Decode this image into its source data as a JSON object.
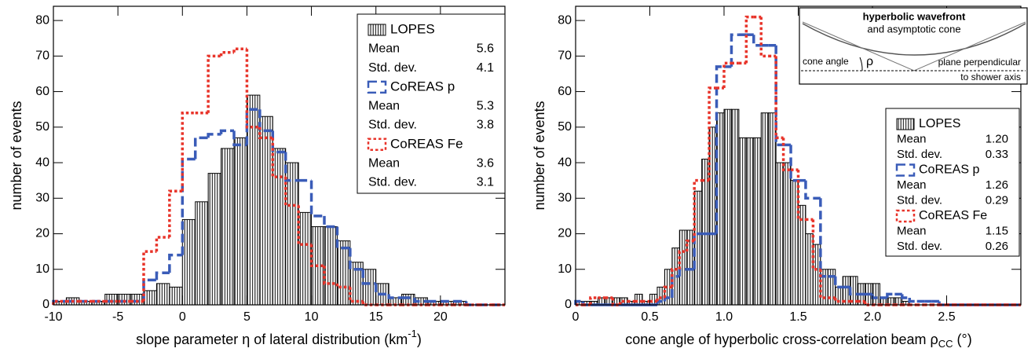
{
  "chart_data": [
    {
      "type": "histogram",
      "x_label": [
        "slope parameter η of lateral distribution (km",
        "-1",
        ")"
      ],
      "x_label_script": "super",
      "y_label": "number of events",
      "bins": [
        -10,
        -9,
        -8,
        -7,
        -6,
        -5,
        -4,
        -3,
        -2,
        -1,
        0,
        1,
        2,
        3,
        4,
        5,
        6,
        7,
        8,
        9,
        10,
        11,
        12,
        13,
        14,
        15,
        16,
        17,
        18,
        19,
        20,
        21,
        22,
        23,
        24,
        25
      ],
      "xlim": [
        -10,
        25
      ],
      "xticks": [
        -10,
        -5,
        0,
        5,
        10,
        15,
        20
      ],
      "ylim": [
        0,
        84
      ],
      "yticks": [
        0,
        10,
        20,
        30,
        40,
        50,
        60,
        70,
        80
      ],
      "series": [
        {
          "name": "LOPES",
          "color": "#000000",
          "style": "hatch",
          "values": [
            1,
            2,
            1,
            1,
            3,
            3,
            3,
            4,
            6,
            5,
            24,
            29,
            37,
            44,
            47,
            59,
            53,
            44,
            40,
            26,
            22,
            22,
            18,
            12,
            10,
            6,
            2,
            3,
            2,
            1,
            1,
            1,
            0,
            0,
            0
          ],
          "stats": [
            {
              "name": "Mean",
              "value": 5.6
            },
            {
              "name": "Std. dev.",
              "value": 4.1
            }
          ]
        },
        {
          "name": "CoREAS p",
          "color": "#3a5cb8",
          "style": "dashed",
          "values": [
            1,
            1,
            1,
            1,
            1,
            1,
            1,
            7,
            9,
            14,
            41,
            47,
            48,
            49,
            45,
            55,
            49,
            43,
            35,
            35,
            25,
            22,
            16,
            10,
            6,
            3,
            2,
            2,
            1,
            1,
            1,
            1,
            0,
            0,
            0
          ],
          "stats": [
            {
              "name": "Mean",
              "value": 5.3
            },
            {
              "name": "Std. dev.",
              "value": 3.8
            }
          ]
        },
        {
          "name": "CoREAS Fe",
          "color": "#e8342a",
          "style": "dotted",
          "values": [
            1,
            1,
            1,
            1,
            1,
            1,
            1,
            15,
            19,
            32,
            54,
            54,
            70,
            71,
            72,
            50,
            47,
            36,
            28,
            17,
            11,
            6,
            5,
            1,
            0,
            0,
            0,
            0,
            0,
            0,
            0,
            0,
            0,
            0,
            0
          ],
          "stats": [
            {
              "name": "Mean",
              "value": 3.6
            },
            {
              "name": "Std. dev.",
              "value": 3.1
            }
          ]
        }
      ]
    },
    {
      "type": "histogram",
      "x_label": [
        "cone angle of hyperbolic cross-correlation beam ρ",
        "CC",
        " (°)"
      ],
      "x_label_script": "sub",
      "y_label": "number of events",
      "bins": [
        0,
        0.05,
        0.1,
        0.15,
        0.2,
        0.25,
        0.3,
        0.35,
        0.4,
        0.45,
        0.5,
        0.55,
        0.6,
        0.65,
        0.7,
        0.75,
        0.8,
        0.85,
        0.9,
        0.95,
        1,
        1.05,
        1.1,
        1.15,
        1.2,
        1.25,
        1.3,
        1.35,
        1.4,
        1.45,
        1.5,
        1.55,
        1.6,
        1.65,
        1.7,
        1.75,
        1.8,
        1.85,
        1.9,
        1.95,
        2,
        2.05,
        2.1,
        2.15,
        2.2,
        2.25,
        2.3,
        2.35,
        2.4,
        2.45,
        2.5,
        2.55,
        2.6,
        2.65,
        2.7,
        2.75,
        2.8,
        2.85,
        2.9,
        2.95,
        3
      ],
      "xlim": [
        0,
        3
      ],
      "xticks": [
        0,
        0.5,
        {
          "value": 1,
          "label": "1.0"
        },
        1.5,
        {
          "value": 2,
          "label": "2.0"
        },
        2.5
      ],
      "ylim": [
        0,
        84
      ],
      "yticks": [
        0,
        10,
        20,
        30,
        40,
        50,
        60,
        70,
        80
      ],
      "series": [
        {
          "name": "LOPES",
          "color": "#000000",
          "style": "hatch",
          "values": [
            1,
            1,
            1,
            2,
            2,
            2,
            2,
            1,
            3,
            1,
            3,
            5,
            10,
            16,
            21,
            21,
            32,
            41,
            50,
            54,
            55,
            55,
            47,
            47,
            47,
            54,
            54,
            40,
            40,
            35,
            28,
            20,
            17,
            10,
            10,
            5,
            8,
            8,
            6,
            6,
            6,
            2,
            2,
            2,
            1,
            0,
            0,
            0,
            0,
            0,
            0,
            0,
            0,
            0,
            0,
            0,
            0,
            0,
            0,
            0
          ],
          "stats": [
            {
              "name": "Mean",
              "value": 1.2,
              "label": "1.20"
            },
            {
              "name": "Std. dev.",
              "value": 0.33
            }
          ]
        },
        {
          "name": "CoREAS p",
          "color": "#3a5cb8",
          "style": "dashed",
          "values": [
            1,
            0,
            0,
            0,
            0,
            0,
            0,
            0,
            0,
            0,
            0,
            1,
            2,
            8,
            10,
            10,
            20,
            20,
            20,
            67,
            67,
            76,
            76,
            76,
            73,
            73,
            73,
            45,
            45,
            35,
            35,
            30,
            30,
            8,
            8,
            5,
            5,
            3,
            3,
            3,
            2,
            2,
            3,
            3,
            2,
            1,
            1,
            1,
            1,
            0,
            0,
            0,
            0,
            0,
            0,
            0,
            0,
            0,
            0,
            0
          ],
          "stats": [
            {
              "name": "Mean",
              "value": 1.26
            },
            {
              "name": "Std. dev.",
              "value": 0.29
            }
          ]
        },
        {
          "name": "CoREAS Fe",
          "color": "#e8342a",
          "style": "dotted",
          "values": [
            0,
            0,
            2,
            2,
            2,
            0,
            1,
            1,
            1,
            1,
            1,
            2,
            5,
            10,
            15,
            18,
            35,
            35,
            61,
            61,
            68,
            68,
            68,
            81,
            81,
            70,
            70,
            47,
            38,
            38,
            24,
            24,
            10,
            2,
            2,
            1,
            1,
            1,
            1,
            0,
            0,
            0,
            0,
            0,
            0,
            0,
            0,
            0,
            0,
            0,
            0,
            0,
            0,
            0,
            0,
            0,
            0,
            0,
            0,
            0
          ],
          "stats": [
            {
              "name": "Mean",
              "value": 1.15
            },
            {
              "name": "Std. dev.",
              "value": 0.26
            }
          ]
        }
      ],
      "inset": {
        "title": "hyperbolic wavefront",
        "subtitle": "and asymptotic cone",
        "angle_label": "cone angle",
        "angle_symbol": "ρ",
        "plane_label": [
          "plane perpendicular",
          "to shower axis"
        ]
      }
    }
  ]
}
